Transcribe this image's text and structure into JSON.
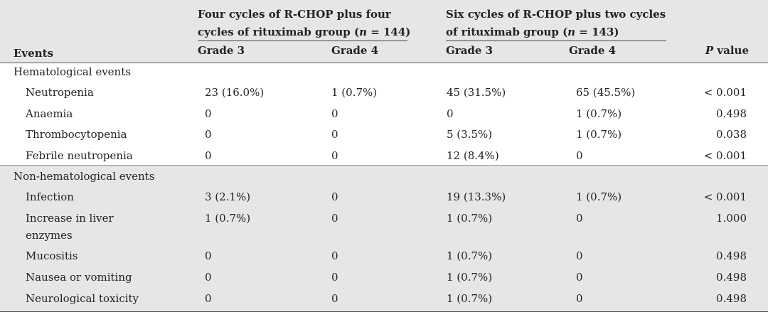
{
  "header": {
    "group1_line1": "Four cycles of R-CHOP plus four",
    "group1_line2": "cycles of rituximab group (n = 144)",
    "group2_line1": "Six cycles of R-CHOP plus two cycles",
    "group2_line2": "of rituximab group (n = 143)",
    "events": "Events",
    "grade3": "Grade 3",
    "grade4": "Grade 4",
    "pvalue_p": "P",
    "pvalue_rest": " value"
  },
  "sections": {
    "hematological": "Hematological events",
    "nonhematological": "Non-hematological events"
  },
  "rows": [
    {
      "event": "Neutropenia",
      "g1g3": "23 (16.0%)",
      "g1g4": "1 (0.7%)",
      "g2g3": "45 (31.5%)",
      "g2g4": "65 (45.5%)",
      "p": "< 0.001"
    },
    {
      "event": "Anaemia",
      "g1g3": "0",
      "g1g4": "0",
      "g2g3": "0",
      "g2g4": "1 (0.7%)",
      "p": "0.498"
    },
    {
      "event": "Thrombocytopenia",
      "g1g3": "0",
      "g1g4": "0",
      "g2g3": "5 (3.5%)",
      "g2g4": "1 (0.7%)",
      "p": "0.038"
    },
    {
      "event": "Febrile neutropenia",
      "g1g3": "0",
      "g1g4": "0",
      "g2g3": "12 (8.4%)",
      "g2g4": "0",
      "p": "< 0.001"
    },
    {
      "event": "Infection",
      "g1g3": "3 (2.1%)",
      "g1g4": "0",
      "g2g3": "19 (13.3%)",
      "g2g4": "1 (0.7%)",
      "p": "< 0.001"
    },
    {
      "event": "Increase in liver",
      "event2": "enzymes",
      "g1g3": "1 (0.7%)",
      "g1g4": "0",
      "g2g3": "1 (0.7%)",
      "g2g4": "0",
      "p": "1.000"
    },
    {
      "event": "Mucositis",
      "g1g3": "0",
      "g1g4": "0",
      "g2g3": "1 (0.7%)",
      "g2g4": "0",
      "p": "0.498"
    },
    {
      "event": "Nausea or vomiting",
      "g1g3": "0",
      "g1g4": "0",
      "g2g3": "1 (0.7%)",
      "g2g4": "0",
      "p": "0.498"
    },
    {
      "event": "Neurological toxicity",
      "g1g3": "0",
      "g1g4": "0",
      "g2g3": "1 (0.7%)",
      "g2g4": "0",
      "p": "0.498"
    }
  ]
}
